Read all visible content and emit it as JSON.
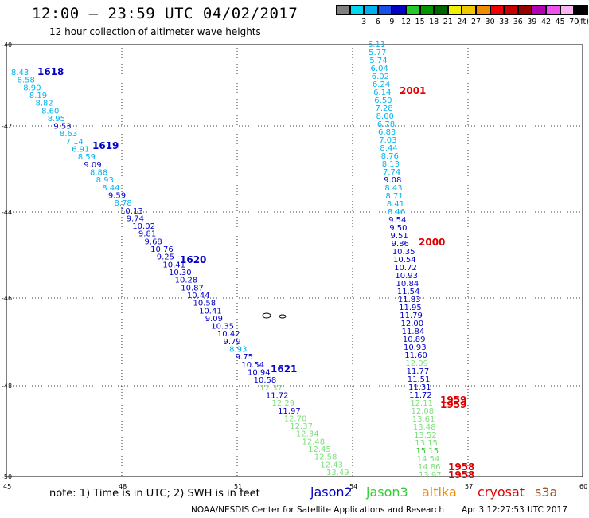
{
  "header": {
    "title": "12:00 — 23:59 UTC 04/02/2017",
    "subtitle": "12 hour collection of altimeter wave heights"
  },
  "color_scale": {
    "unit_label": "(ft)",
    "swatches": [
      {
        "color": "#808080",
        "label": ""
      },
      {
        "color": "#00d8f0",
        "label": "3"
      },
      {
        "color": "#00b0f0",
        "label": "6"
      },
      {
        "color": "#1a50e8",
        "label": "9"
      },
      {
        "color": "#0000c8",
        "label": "12"
      },
      {
        "color": "#28c828",
        "label": "15"
      },
      {
        "color": "#009600",
        "label": "18"
      },
      {
        "color": "#006400",
        "label": "21"
      },
      {
        "color": "#f0f000",
        "label": "24"
      },
      {
        "color": "#f0c800",
        "label": "27"
      },
      {
        "color": "#f08c00",
        "label": "30"
      },
      {
        "color": "#f00000",
        "label": "33"
      },
      {
        "color": "#c80000",
        "label": "36"
      },
      {
        "color": "#960000",
        "label": "39"
      },
      {
        "color": "#b400b4",
        "label": "42"
      },
      {
        "color": "#f050f0",
        "label": "45"
      },
      {
        "color": "#f8b4f0",
        "label": "70"
      },
      {
        "color": "#000000",
        "label": ""
      }
    ]
  },
  "axes": {
    "lat_labels": [
      "-40",
      "-42",
      "-44",
      "-46",
      "-48",
      "-50"
    ],
    "lon_labels": [
      "45",
      "48",
      "51",
      "54",
      "57",
      "60"
    ]
  },
  "colors": {
    "cyan": "#00b4f0",
    "blue": "#0000c8",
    "green": "#32cd32",
    "light_green": "#7ce07c",
    "red": "#e00000",
    "orange": "#f08c00",
    "brown": "#a0522d"
  },
  "tracks": [
    {
      "id": "west-track",
      "points": [
        {
          "v": "8.43",
          "c": "cyan"
        },
        {
          "v": "8.58",
          "c": "cyan"
        },
        {
          "v": "8.90",
          "c": "cyan"
        },
        {
          "v": "8.19",
          "c": "cyan"
        },
        {
          "v": "8.82",
          "c": "cyan"
        },
        {
          "v": "8.60",
          "c": "cyan"
        },
        {
          "v": "8.95",
          "c": "cyan"
        },
        {
          "v": "9.53",
          "c": "blue"
        },
        {
          "v": "8.63",
          "c": "cyan"
        },
        {
          "v": "7.14",
          "c": "cyan"
        },
        {
          "v": "6.91",
          "c": "cyan"
        },
        {
          "v": "8.59",
          "c": "cyan"
        },
        {
          "v": "9.09",
          "c": "blue"
        },
        {
          "v": "8.88",
          "c": "cyan"
        },
        {
          "v": "8.93",
          "c": "cyan"
        },
        {
          "v": "8.44",
          "c": "cyan"
        },
        {
          "v": "9.59",
          "c": "blue"
        },
        {
          "v": "8.78",
          "c": "cyan"
        },
        {
          "v": "10.13",
          "c": "blue"
        },
        {
          "v": "9.74",
          "c": "blue"
        },
        {
          "v": "10.02",
          "c": "blue"
        },
        {
          "v": "9.81",
          "c": "blue"
        },
        {
          "v": "9.68",
          "c": "blue"
        },
        {
          "v": "10.76",
          "c": "blue"
        },
        {
          "v": "9.25",
          "c": "blue"
        },
        {
          "v": "10.41",
          "c": "blue"
        },
        {
          "v": "10.30",
          "c": "blue"
        },
        {
          "v": "10.28",
          "c": "blue"
        },
        {
          "v": "10.87",
          "c": "blue"
        },
        {
          "v": "10.44",
          "c": "blue"
        },
        {
          "v": "10.58",
          "c": "blue"
        },
        {
          "v": "10.41",
          "c": "blue"
        },
        {
          "v": "9.09",
          "c": "blue"
        },
        {
          "v": "10.35",
          "c": "blue"
        },
        {
          "v": "10.42",
          "c": "blue"
        },
        {
          "v": "9.79",
          "c": "blue"
        },
        {
          "v": "8.93",
          "c": "cyan"
        },
        {
          "v": "9.75",
          "c": "blue"
        },
        {
          "v": "10.54",
          "c": "blue"
        },
        {
          "v": "10.94",
          "c": "blue"
        },
        {
          "v": "10.58",
          "c": "blue"
        },
        {
          "v": "12.37",
          "c": "light_green"
        },
        {
          "v": "11.72",
          "c": "blue"
        },
        {
          "v": "12.29",
          "c": "light_green"
        },
        {
          "v": "11.97",
          "c": "blue"
        },
        {
          "v": "12.70",
          "c": "light_green"
        },
        {
          "v": "12.37",
          "c": "light_green"
        },
        {
          "v": "12.34",
          "c": "light_green"
        },
        {
          "v": "12.48",
          "c": "light_green"
        },
        {
          "v": "12.45",
          "c": "light_green"
        },
        {
          "v": "12.58",
          "c": "light_green"
        },
        {
          "v": "12.43",
          "c": "light_green"
        },
        {
          "v": "13.49",
          "c": "light_green"
        }
      ]
    },
    {
      "id": "east-track",
      "points": [
        {
          "v": "6.11",
          "c": "cyan"
        },
        {
          "v": "5.77",
          "c": "cyan"
        },
        {
          "v": "5.74",
          "c": "cyan"
        },
        {
          "v": "6.04",
          "c": "cyan"
        },
        {
          "v": "6.02",
          "c": "cyan"
        },
        {
          "v": "6.24",
          "c": "cyan"
        },
        {
          "v": "6.14",
          "c": "cyan"
        },
        {
          "v": "6.50",
          "c": "cyan"
        },
        {
          "v": "7.28",
          "c": "cyan"
        },
        {
          "v": "8.00",
          "c": "cyan"
        },
        {
          "v": "6.78",
          "c": "cyan"
        },
        {
          "v": "6.83",
          "c": "cyan"
        },
        {
          "v": "7.03",
          "c": "cyan"
        },
        {
          "v": "8.44",
          "c": "cyan"
        },
        {
          "v": "8.76",
          "c": "cyan"
        },
        {
          "v": "8.13",
          "c": "cyan"
        },
        {
          "v": "7.74",
          "c": "cyan"
        },
        {
          "v": "9.08",
          "c": "blue"
        },
        {
          "v": "8.43",
          "c": "cyan"
        },
        {
          "v": "8.71",
          "c": "cyan"
        },
        {
          "v": "8.41",
          "c": "cyan"
        },
        {
          "v": "8.46",
          "c": "cyan"
        },
        {
          "v": "9.54",
          "c": "blue"
        },
        {
          "v": "9.50",
          "c": "blue"
        },
        {
          "v": "9.51",
          "c": "blue"
        },
        {
          "v": "9.86",
          "c": "blue"
        },
        {
          "v": "10.35",
          "c": "blue"
        },
        {
          "v": "10.54",
          "c": "blue"
        },
        {
          "v": "10.72",
          "c": "blue"
        },
        {
          "v": "10.93",
          "c": "blue"
        },
        {
          "v": "10.84",
          "c": "blue"
        },
        {
          "v": "11.54",
          "c": "blue"
        },
        {
          "v": "11.83",
          "c": "blue"
        },
        {
          "v": "11.95",
          "c": "blue"
        },
        {
          "v": "11.79",
          "c": "blue"
        },
        {
          "v": "12.00",
          "c": "blue"
        },
        {
          "v": "11.84",
          "c": "blue"
        },
        {
          "v": "10.89",
          "c": "blue"
        },
        {
          "v": "10.93",
          "c": "blue"
        },
        {
          "v": "11.60",
          "c": "blue"
        },
        {
          "v": "12.09",
          "c": "light_green"
        },
        {
          "v": "11.77",
          "c": "blue"
        },
        {
          "v": "11.51",
          "c": "blue"
        },
        {
          "v": "11.31",
          "c": "blue"
        },
        {
          "v": "11.72",
          "c": "blue"
        },
        {
          "v": "12.11",
          "c": "light_green"
        },
        {
          "v": "12.08",
          "c": "light_green"
        },
        {
          "v": "13.61",
          "c": "light_green"
        },
        {
          "v": "13.48",
          "c": "light_green"
        },
        {
          "v": "13.52",
          "c": "light_green"
        },
        {
          "v": "13.15",
          "c": "light_green"
        },
        {
          "v": "15.15",
          "c": "green"
        },
        {
          "v": "14.54",
          "c": "light_green"
        },
        {
          "v": "14.86",
          "c": "light_green"
        },
        {
          "v": "13.97",
          "c": "light_green"
        }
      ]
    }
  ],
  "pass_times": [
    {
      "text": "1618",
      "c": "blue"
    },
    {
      "text": "1619",
      "c": "blue"
    },
    {
      "text": "1620",
      "c": "blue"
    },
    {
      "text": "1621",
      "c": "blue"
    },
    {
      "text": "2001",
      "c": "red"
    },
    {
      "text": "2000",
      "c": "red"
    },
    {
      "text": "1959",
      "c": "red"
    },
    {
      "text": "1959",
      "c": "red"
    },
    {
      "text": "1958",
      "c": "red"
    },
    {
      "text": "1958",
      "c": "red"
    }
  ],
  "note": "note: 1) Time is in UTC; 2) SWH is in feet",
  "legend": [
    {
      "name": "jason2",
      "c": "blue"
    },
    {
      "name": "jason3",
      "c": "green"
    },
    {
      "name": "altika",
      "c": "orange"
    },
    {
      "name": "cryosat",
      "c": "red"
    },
    {
      "name": "s3a",
      "c": "brown"
    }
  ],
  "footer": {
    "left": "NOAA/NESDIS Center for Satellite Applications and Research",
    "right": "Apr  3 12:27:53 UTC 2017"
  }
}
